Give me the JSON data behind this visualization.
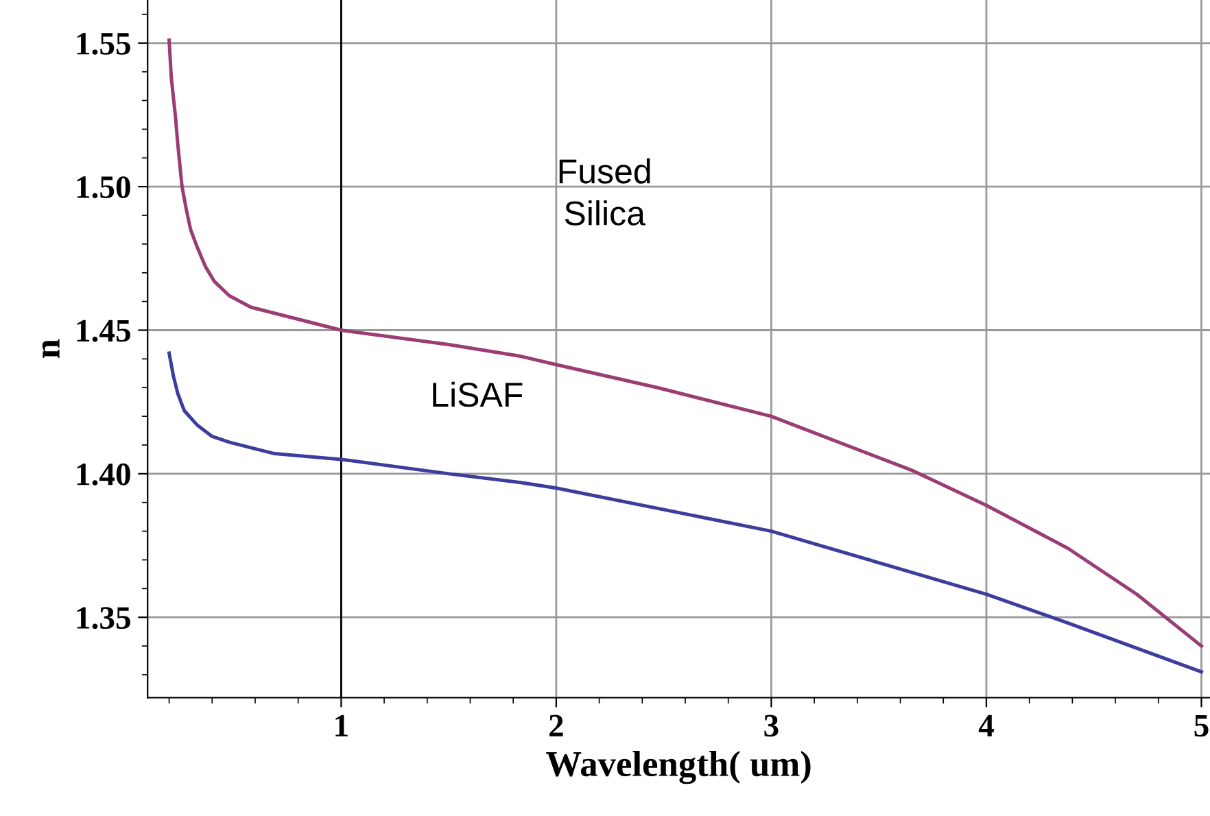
{
  "chart_data": {
    "type": "line",
    "xlabel": "Wavelength( um)",
    "ylabel": "n",
    "xlim": [
      0.1,
      5.04
    ],
    "ylim": [
      1.322,
      1.565
    ],
    "xticks": [
      1,
      2,
      3,
      4,
      5
    ],
    "yticks": [
      1.35,
      {
        "value": 1.4,
        "label": "1.40"
      },
      1.45,
      {
        "value": 1.5,
        "label": "1.50"
      },
      1.55
    ],
    "grid": true,
    "marker": "none",
    "line_style": "solid",
    "ref_lines": [
      {
        "axis": "x",
        "value": 1,
        "color": "#000000"
      }
    ],
    "series": [
      {
        "color": "#993d73",
        "x": [
          0.2,
          0.21,
          0.23,
          0.24,
          0.26,
          0.28,
          0.3,
          0.33,
          0.37,
          0.41,
          0.48,
          0.58,
          0.79,
          1.0,
          1.5,
          1.83,
          2.0,
          2.47,
          3.0,
          3.66,
          4.0,
          4.38,
          4.7,
          5.0
        ],
        "values": [
          1.551,
          1.538,
          1.524,
          1.515,
          1.5,
          1.492,
          1.485,
          1.479,
          1.472,
          1.467,
          1.462,
          1.458,
          1.454,
          1.45,
          1.445,
          1.441,
          1.438,
          1.43,
          1.42,
          1.401,
          1.389,
          1.374,
          1.358,
          1.34
        ]
      },
      {
        "color": "#3d3d9e",
        "x": [
          0.2,
          0.22,
          0.24,
          0.27,
          0.33,
          0.4,
          0.48,
          0.69,
          1.0,
          1.5,
          1.83,
          2.0,
          3.0,
          4.0,
          4.38,
          5.0
        ],
        "values": [
          1.442,
          1.434,
          1.428,
          1.422,
          1.417,
          1.413,
          1.411,
          1.407,
          1.405,
          1.4,
          1.397,
          1.395,
          1.38,
          1.358,
          1.348,
          1.331
        ]
      }
    ],
    "annotations": [
      "Fused\nSilica",
      "LiSAF"
    ]
  }
}
